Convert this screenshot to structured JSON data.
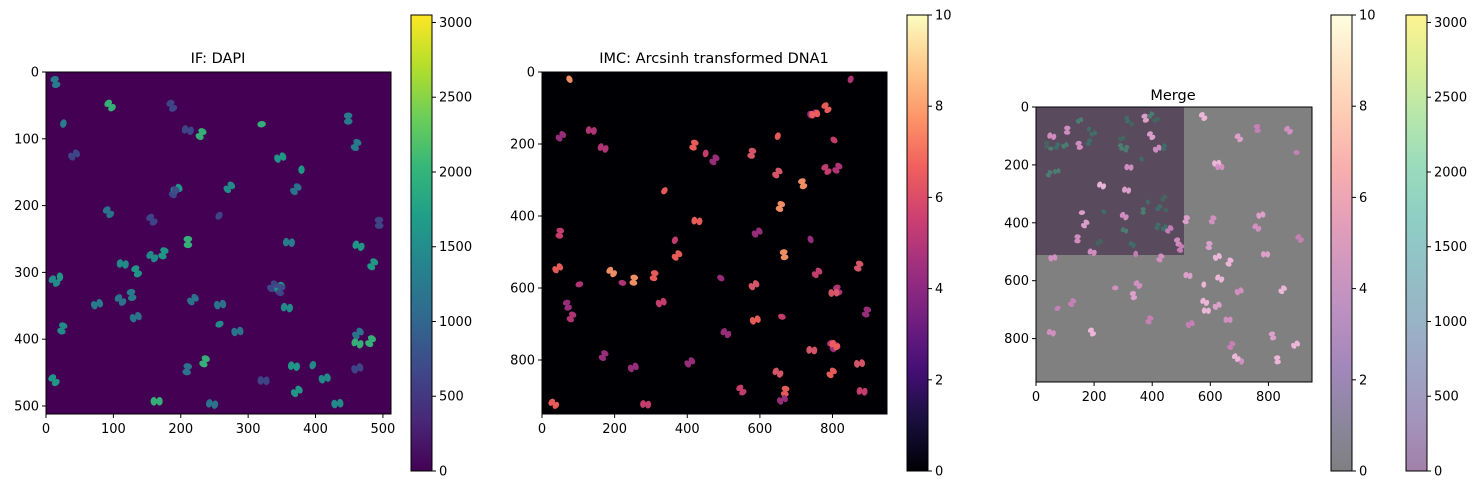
{
  "colors": {
    "viridis": [
      "#440154",
      "#482878",
      "#3e4989",
      "#31688e",
      "#26828e",
      "#1f9e89",
      "#35b779",
      "#6ece58",
      "#b5de2b",
      "#fde725"
    ],
    "magma": [
      "#000004",
      "#180f3d",
      "#440f76",
      "#721f81",
      "#9e2f7f",
      "#cd4071",
      "#f1605d",
      "#fd9668",
      "#feca8d",
      "#fcfdbf"
    ],
    "merge_background": "#808080",
    "merge_overlay": "#5a4a5e"
  },
  "panels": [
    {
      "id": "if-dapi",
      "title": "IF: DAPI",
      "image_extent": 512,
      "x_ticks": [
        "0",
        "100",
        "200",
        "300",
        "400",
        "500"
      ],
      "y_ticks": [
        "0",
        "100",
        "200",
        "300",
        "400",
        "500"
      ],
      "colormap": "viridis",
      "colorbar": {
        "min": 0,
        "max": 3050,
        "ticks": [
          "0",
          "500",
          "1000",
          "1500",
          "2000",
          "2500",
          "3000"
        ]
      }
    },
    {
      "id": "imc-dna1",
      "title": "IMC: Arcsinh transformed DNA1",
      "image_extent": 950,
      "x_ticks": [
        "0",
        "200",
        "400",
        "600",
        "800"
      ],
      "y_ticks": [
        "0",
        "200",
        "400",
        "600",
        "800"
      ],
      "colormap": "magma",
      "colorbar": {
        "min": 0,
        "max": 10,
        "ticks": [
          "0",
          "2",
          "4",
          "6",
          "8",
          "10"
        ]
      }
    },
    {
      "id": "merge",
      "title": "Merge",
      "image_extent": 950,
      "overlay_extent": 512,
      "x_ticks": [
        "0",
        "200",
        "400",
        "600",
        "800"
      ],
      "y_ticks": [
        "0",
        "200",
        "400",
        "600",
        "800"
      ],
      "colorbars": [
        {
          "colormap": "magma",
          "alpha": 0.5,
          "min": 0,
          "max": 10,
          "ticks": [
            "0",
            "2",
            "4",
            "6",
            "8",
            "10"
          ]
        },
        {
          "colormap": "viridis",
          "alpha": 0.5,
          "min": 0,
          "max": 3050,
          "ticks": [
            "0",
            "500",
            "1000",
            "1500",
            "2000",
            "2500",
            "3000"
          ]
        }
      ]
    }
  ]
}
